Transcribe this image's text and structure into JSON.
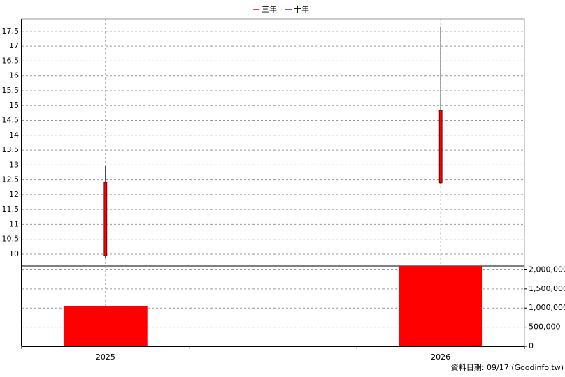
{
  "chart_data": {
    "type": "candlestick",
    "legend": [
      {
        "name": "三年",
        "color": "#d0004a"
      },
      {
        "name": "十年",
        "color": "#6a00c8"
      }
    ],
    "categories": [
      "2025",
      null,
      "2026"
    ],
    "open": [
      9.95,
      null,
      12.4
    ],
    "high": [
      12.96,
      null,
      17.67
    ],
    "low": [
      9.86,
      null,
      12.35
    ],
    "close": [
      12.42,
      null,
      14.84
    ],
    "color": "#ff0000",
    "ylim": [
      9.6,
      17.92
    ],
    "yticks": [
      10,
      10.5,
      11,
      11.5,
      12,
      12.5,
      13,
      13.5,
      14,
      14.5,
      15,
      15.5,
      16,
      16.5,
      17,
      17.5
    ],
    "volume": {
      "values": [
        1050000,
        null,
        2100000
      ],
      "color": "#ff0000",
      "y2lim": [
        0,
        2100000
      ],
      "y2ticks": [
        0,
        {
          "value": 500000,
          "label": "500,000"
        },
        {
          "value": 1000000,
          "label": "1,000,000"
        },
        {
          "value": 1500000,
          "label": "1,500,000"
        },
        {
          "value": 2000000,
          "label": "2,000,000"
        }
      ]
    },
    "grid": true,
    "source": "資料日期: 09/17  (Goodinfo.tw)"
  }
}
